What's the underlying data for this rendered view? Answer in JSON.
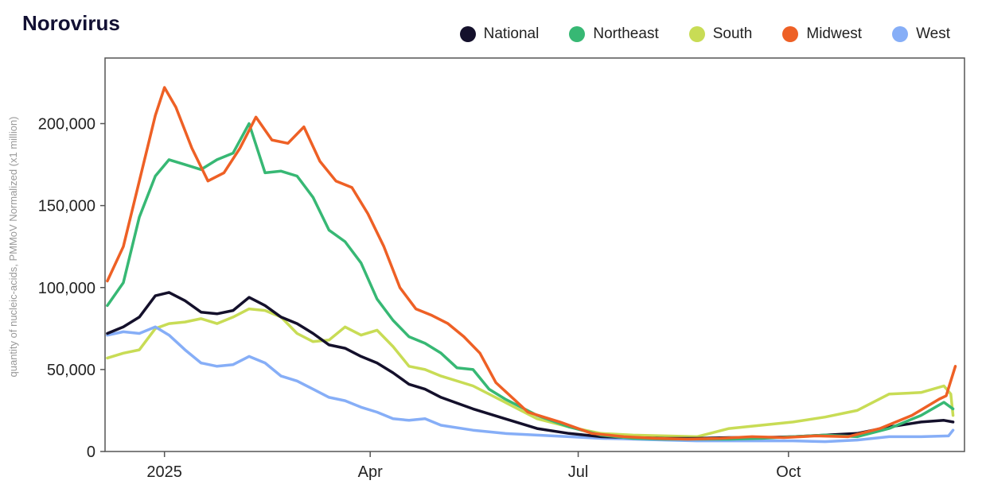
{
  "title": "Norovirus",
  "chart_data": {
    "type": "line",
    "title": "Norovirus",
    "ylabel": "quantity of nucleic-acids, PMMoV Normalized (x1 million)",
    "xlabel": "",
    "ylim": [
      0,
      240000
    ],
    "yticks": [
      0,
      50000,
      100000,
      150000,
      200000
    ],
    "ytick_labels": [
      "0",
      "50,000",
      "100,000",
      "150,000",
      "200,000"
    ],
    "xticks": [
      {
        "label": "2025",
        "date": "2025-01-01"
      },
      {
        "label": "Apr",
        "date": "2025-04-01"
      },
      {
        "label": "Jul",
        "date": "2025-07-01"
      },
      {
        "label": "Oct",
        "date": "2025-10-01"
      }
    ],
    "xlim": [
      "2024-12-06",
      "2025-12-17"
    ],
    "grid": false,
    "legend_position": "top-right",
    "series": [
      {
        "name": "National",
        "color": "#14102b",
        "points": [
          [
            "2024-12-07",
            72000
          ],
          [
            "2024-12-14",
            76000
          ],
          [
            "2024-12-21",
            82000
          ],
          [
            "2024-12-28",
            95000
          ],
          [
            "2025-01-03",
            97000
          ],
          [
            "2025-01-10",
            92000
          ],
          [
            "2025-01-17",
            85000
          ],
          [
            "2025-01-24",
            84000
          ],
          [
            "2025-01-31",
            86000
          ],
          [
            "2025-02-07",
            94000
          ],
          [
            "2025-02-14",
            89000
          ],
          [
            "2025-02-21",
            82000
          ],
          [
            "2025-02-28",
            78000
          ],
          [
            "2025-03-07",
            72000
          ],
          [
            "2025-03-14",
            65000
          ],
          [
            "2025-03-21",
            63000
          ],
          [
            "2025-03-28",
            58000
          ],
          [
            "2025-04-04",
            54000
          ],
          [
            "2025-04-11",
            48000
          ],
          [
            "2025-04-18",
            41000
          ],
          [
            "2025-04-25",
            38000
          ],
          [
            "2025-05-02",
            33000
          ],
          [
            "2025-05-16",
            26000
          ],
          [
            "2025-05-30",
            20000
          ],
          [
            "2025-06-13",
            14000
          ],
          [
            "2025-06-27",
            11000
          ],
          [
            "2025-07-11",
            9000
          ],
          [
            "2025-07-25",
            8500
          ],
          [
            "2025-08-08",
            8000
          ],
          [
            "2025-08-22",
            8000
          ],
          [
            "2025-09-05",
            8500
          ],
          [
            "2025-09-19",
            8500
          ],
          [
            "2025-10-03",
            9000
          ],
          [
            "2025-10-17",
            10000
          ],
          [
            "2025-10-31",
            11000
          ],
          [
            "2025-11-14",
            15000
          ],
          [
            "2025-11-28",
            18000
          ],
          [
            "2025-12-08",
            19000
          ],
          [
            "2025-12-12",
            18000
          ]
        ]
      },
      {
        "name": "Northeast",
        "color": "#37b874",
        "points": [
          [
            "2024-12-07",
            89000
          ],
          [
            "2024-12-14",
            103000
          ],
          [
            "2024-12-21",
            143000
          ],
          [
            "2024-12-28",
            168000
          ],
          [
            "2025-01-03",
            178000
          ],
          [
            "2025-01-10",
            175000
          ],
          [
            "2025-01-17",
            172000
          ],
          [
            "2025-01-24",
            178000
          ],
          [
            "2025-01-31",
            182000
          ],
          [
            "2025-02-07",
            200000
          ],
          [
            "2025-02-14",
            170000
          ],
          [
            "2025-02-21",
            171000
          ],
          [
            "2025-02-28",
            168000
          ],
          [
            "2025-03-07",
            155000
          ],
          [
            "2025-03-14",
            135000
          ],
          [
            "2025-03-21",
            128000
          ],
          [
            "2025-03-28",
            115000
          ],
          [
            "2025-04-04",
            93000
          ],
          [
            "2025-04-11",
            80000
          ],
          [
            "2025-04-18",
            70000
          ],
          [
            "2025-04-25",
            66000
          ],
          [
            "2025-05-02",
            60000
          ],
          [
            "2025-05-09",
            51000
          ],
          [
            "2025-05-16",
            50000
          ],
          [
            "2025-05-23",
            38000
          ],
          [
            "2025-05-30",
            32000
          ],
          [
            "2025-06-13",
            22000
          ],
          [
            "2025-06-27",
            15000
          ],
          [
            "2025-07-11",
            10000
          ],
          [
            "2025-07-25",
            8000
          ],
          [
            "2025-08-08",
            7500
          ],
          [
            "2025-08-22",
            7500
          ],
          [
            "2025-09-05",
            7500
          ],
          [
            "2025-09-19",
            8000
          ],
          [
            "2025-10-03",
            9000
          ],
          [
            "2025-10-17",
            10000
          ],
          [
            "2025-10-31",
            9000
          ],
          [
            "2025-11-14",
            14000
          ],
          [
            "2025-11-28",
            22000
          ],
          [
            "2025-12-08",
            30000
          ],
          [
            "2025-12-12",
            26000
          ]
        ]
      },
      {
        "name": "South",
        "color": "#c8dc55",
        "points": [
          [
            "2024-12-07",
            57000
          ],
          [
            "2024-12-14",
            60000
          ],
          [
            "2024-12-21",
            62000
          ],
          [
            "2024-12-28",
            75000
          ],
          [
            "2025-01-03",
            78000
          ],
          [
            "2025-01-10",
            79000
          ],
          [
            "2025-01-17",
            81000
          ],
          [
            "2025-01-24",
            78000
          ],
          [
            "2025-01-31",
            82000
          ],
          [
            "2025-02-07",
            87000
          ],
          [
            "2025-02-14",
            86000
          ],
          [
            "2025-02-21",
            82000
          ],
          [
            "2025-02-28",
            72000
          ],
          [
            "2025-03-07",
            67000
          ],
          [
            "2025-03-14",
            68000
          ],
          [
            "2025-03-21",
            76000
          ],
          [
            "2025-03-28",
            71000
          ],
          [
            "2025-04-04",
            74000
          ],
          [
            "2025-04-11",
            64000
          ],
          [
            "2025-04-18",
            52000
          ],
          [
            "2025-04-25",
            50000
          ],
          [
            "2025-05-02",
            46000
          ],
          [
            "2025-05-16",
            40000
          ],
          [
            "2025-05-30",
            30000
          ],
          [
            "2025-06-13",
            20000
          ],
          [
            "2025-06-27",
            15000
          ],
          [
            "2025-07-11",
            11000
          ],
          [
            "2025-07-25",
            10000
          ],
          [
            "2025-08-08",
            9500
          ],
          [
            "2025-08-22",
            9000
          ],
          [
            "2025-09-05",
            14000
          ],
          [
            "2025-09-19",
            16000
          ],
          [
            "2025-10-03",
            18000
          ],
          [
            "2025-10-17",
            21000
          ],
          [
            "2025-10-31",
            25000
          ],
          [
            "2025-11-14",
            35000
          ],
          [
            "2025-11-28",
            36000
          ],
          [
            "2025-12-08",
            40000
          ],
          [
            "2025-12-11",
            35000
          ],
          [
            "2025-12-12",
            22000
          ]
        ]
      },
      {
        "name": "Midwest",
        "color": "#ee6025",
        "points": [
          [
            "2024-12-07",
            104000
          ],
          [
            "2024-12-14",
            125000
          ],
          [
            "2024-12-21",
            165000
          ],
          [
            "2024-12-28",
            205000
          ],
          [
            "2025-01-01",
            222000
          ],
          [
            "2025-01-06",
            210000
          ],
          [
            "2025-01-13",
            185000
          ],
          [
            "2025-01-20",
            165000
          ],
          [
            "2025-01-27",
            170000
          ],
          [
            "2025-02-03",
            185000
          ],
          [
            "2025-02-10",
            204000
          ],
          [
            "2025-02-17",
            190000
          ],
          [
            "2025-02-24",
            188000
          ],
          [
            "2025-03-03",
            198000
          ],
          [
            "2025-03-10",
            177000
          ],
          [
            "2025-03-17",
            165000
          ],
          [
            "2025-03-24",
            161000
          ],
          [
            "2025-03-31",
            145000
          ],
          [
            "2025-04-07",
            125000
          ],
          [
            "2025-04-14",
            100000
          ],
          [
            "2025-04-21",
            87000
          ],
          [
            "2025-04-28",
            83000
          ],
          [
            "2025-05-05",
            78000
          ],
          [
            "2025-05-12",
            70000
          ],
          [
            "2025-05-19",
            60000
          ],
          [
            "2025-05-26",
            42000
          ],
          [
            "2025-06-09",
            24000
          ],
          [
            "2025-06-23",
            18000
          ],
          [
            "2025-07-07",
            11000
          ],
          [
            "2025-07-21",
            9000
          ],
          [
            "2025-08-04",
            8000
          ],
          [
            "2025-08-18",
            7500
          ],
          [
            "2025-09-01",
            8000
          ],
          [
            "2025-09-15",
            9000
          ],
          [
            "2025-09-29",
            8500
          ],
          [
            "2025-10-13",
            9500
          ],
          [
            "2025-10-27",
            9000
          ],
          [
            "2025-11-10",
            14000
          ],
          [
            "2025-11-24",
            22000
          ],
          [
            "2025-12-06",
            32000
          ],
          [
            "2025-12-09",
            34000
          ],
          [
            "2025-12-13",
            52000
          ]
        ]
      },
      {
        "name": "West",
        "color": "#86aef7",
        "points": [
          [
            "2024-12-07",
            71000
          ],
          [
            "2024-12-14",
            73000
          ],
          [
            "2024-12-21",
            72000
          ],
          [
            "2024-12-28",
            76000
          ],
          [
            "2025-01-03",
            71000
          ],
          [
            "2025-01-10",
            62000
          ],
          [
            "2025-01-17",
            54000
          ],
          [
            "2025-01-24",
            52000
          ],
          [
            "2025-01-31",
            53000
          ],
          [
            "2025-02-07",
            58000
          ],
          [
            "2025-02-14",
            54000
          ],
          [
            "2025-02-21",
            46000
          ],
          [
            "2025-02-28",
            43000
          ],
          [
            "2025-03-07",
            38000
          ],
          [
            "2025-03-14",
            33000
          ],
          [
            "2025-03-21",
            31000
          ],
          [
            "2025-03-28",
            27000
          ],
          [
            "2025-04-04",
            24000
          ],
          [
            "2025-04-11",
            20000
          ],
          [
            "2025-04-18",
            19000
          ],
          [
            "2025-04-25",
            20000
          ],
          [
            "2025-05-02",
            16000
          ],
          [
            "2025-05-16",
            13000
          ],
          [
            "2025-05-30",
            11000
          ],
          [
            "2025-06-13",
            10000
          ],
          [
            "2025-06-27",
            9000
          ],
          [
            "2025-07-11",
            8000
          ],
          [
            "2025-07-25",
            7500
          ],
          [
            "2025-08-08",
            7000
          ],
          [
            "2025-08-22",
            6500
          ],
          [
            "2025-09-05",
            6500
          ],
          [
            "2025-09-19",
            6500
          ],
          [
            "2025-10-03",
            6500
          ],
          [
            "2025-10-17",
            6000
          ],
          [
            "2025-10-31",
            7000
          ],
          [
            "2025-11-14",
            9000
          ],
          [
            "2025-11-28",
            9000
          ],
          [
            "2025-12-10",
            9500
          ],
          [
            "2025-12-12",
            13000
          ]
        ]
      }
    ]
  }
}
